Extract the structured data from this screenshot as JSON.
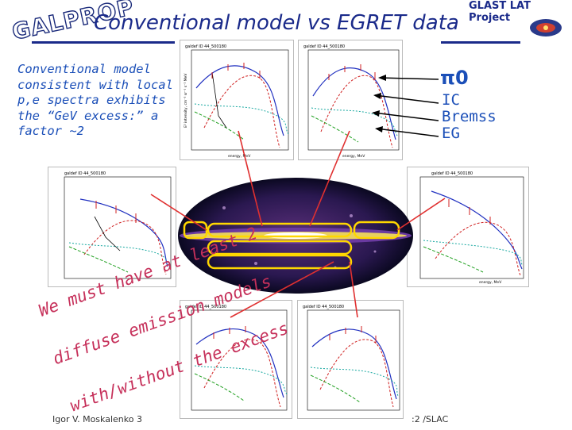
{
  "header": {
    "logo_text": "GALPROP",
    "title": "Conventional model vs EGRET data",
    "project": "GLAST LAT Project"
  },
  "description": [
    "Conventional model",
    "consistent with local",
    "p,e spectra exhibits",
    "the “GeV excess:” a",
    "factor ~2"
  ],
  "legend": {
    "pi0_label": "π0",
    "items": [
      "IC",
      "Bremss",
      "EG"
    ]
  },
  "panels": [
    {
      "id": "top-left",
      "label": "galdef ID 44_500180"
    },
    {
      "id": "top-right",
      "label": "galdef ID 44_500180"
    },
    {
      "id": "mid-left",
      "label": "galdef ID 44_500180"
    },
    {
      "id": "mid-right",
      "label": "galdef ID 44_500180"
    },
    {
      "id": "bottom-center",
      "label": "galdef ID 44_500180"
    },
    {
      "id": "bottom-right",
      "label": "galdef ID 44_500180"
    }
  ],
  "axis_labels": {
    "x": "energy, MeV",
    "y": "E² intensity, cm⁻² sr⁻¹ s⁻¹ MeV"
  },
  "overlay_text": [
    "We must have at least 2",
    "diffuse emission models",
    "with/without the excess"
  ],
  "footer": {
    "author": "Igor V. Moskalenko 3",
    "location": ":2 /SLAC"
  },
  "colors": {
    "title": "#1a2a8a",
    "text": "#1b4fb8",
    "overlay": "#c6305a",
    "pi0_curve": "#d02020",
    "ic_curve": "#18a8a0",
    "bremss_curve": "#20a020",
    "total_curve": "#2030c0",
    "arrow": "#e03030"
  }
}
